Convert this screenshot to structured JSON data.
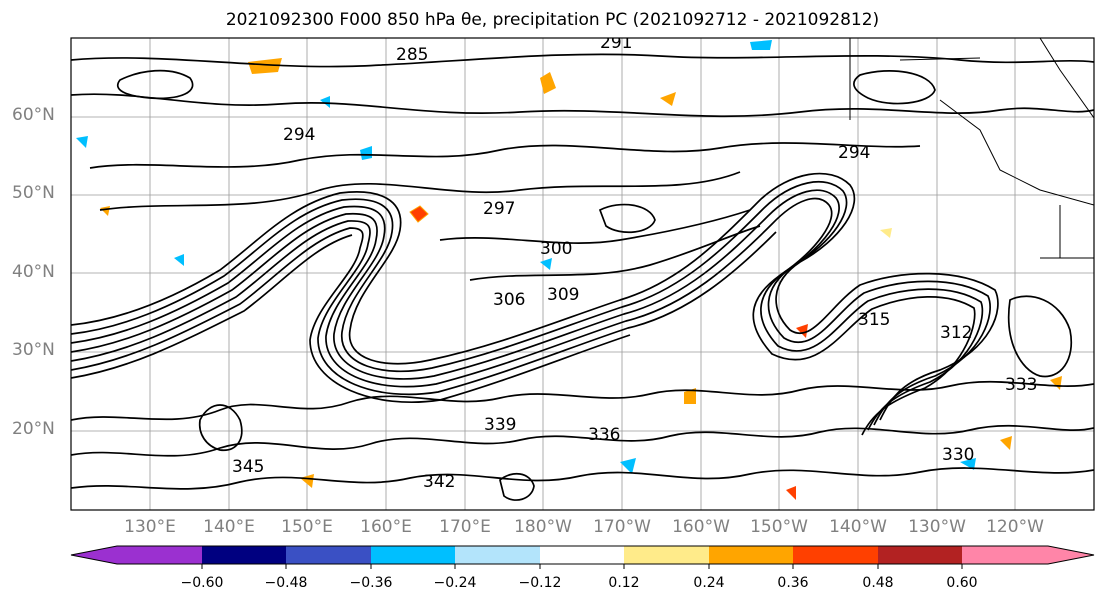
{
  "title": "2021092300 F000 850 hPa θe, precipitation PC (2021092712 - 2021092812)",
  "map": {
    "lat_labels": [
      "60°N",
      "50°N",
      "40°N",
      "30°N",
      "20°N"
    ],
    "lon_labels": [
      "130°E",
      "140°E",
      "150°E",
      "160°E",
      "170°E",
      "180°W",
      "170°W",
      "160°W",
      "150°W",
      "140°W",
      "130°W",
      "120°W"
    ],
    "contour_labels": [
      "285",
      "291",
      "294",
      "294",
      "297",
      "300",
      "306",
      "309",
      "312",
      "315",
      "330",
      "333",
      "336",
      "339",
      "342",
      "345"
    ],
    "contour_color": "#000000",
    "grid": true
  },
  "colorbar": {
    "colors": [
      "#9b30d0",
      "#000080",
      "#3a50c4",
      "#00bfff",
      "#b3e4fb",
      "#ffffff",
      "#ffeb8a",
      "#ffa500",
      "#ff4000",
      "#b22222",
      "#ff85a8"
    ],
    "tick_labels": [
      "−0.60",
      "−0.48",
      "−0.36",
      "−0.24",
      "−0.12",
      "0.12",
      "0.24",
      "0.36",
      "0.48",
      "0.60"
    ]
  }
}
